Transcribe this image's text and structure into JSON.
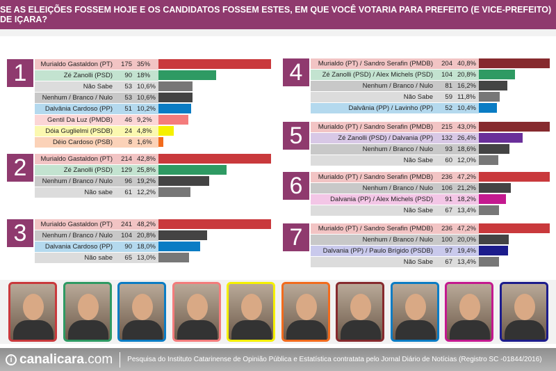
{
  "header": {
    "title": "SE AS ELEIÇÕES FOSSEM HOJE E OS CANDIDATOS FOSSEM ESTES, EM QUE VOCÊ VOTARIA PARA PREFEITO (E VICE-PREFEITO) DE IÇARA?"
  },
  "chart_data": [
    {
      "type": "bar",
      "title": "1",
      "rows": [
        {
          "label": "Murialdo Gastaldon (PT)",
          "count": "175",
          "pct": "35%",
          "value": 35,
          "bg": "#f2c4c4",
          "color": "#c9393c"
        },
        {
          "label": "Zé Zanolli (PSD)",
          "count": "90",
          "pct": "18%",
          "value": 18,
          "bg": "#c3e3d0",
          "color": "#2e9a63"
        },
        {
          "label": "Não Sabe",
          "count": "53",
          "pct": "10,6%",
          "value": 10.6,
          "bg": "#dcdcdc",
          "color": "#777777"
        },
        {
          "label": "Nenhum / Branco / Nulo",
          "count": "53",
          "pct": "10,6%",
          "value": 10.6,
          "bg": "#c8c8c8",
          "color": "#444444"
        },
        {
          "label": "Dalvânia Cardoso (PP)",
          "count": "51",
          "pct": "10,2%",
          "value": 10.2,
          "bg": "#b4d9ee",
          "color": "#0a7cc4"
        },
        {
          "label": "Gentil Da Luz (PMDB)",
          "count": "46",
          "pct": "9,2%",
          "value": 9.2,
          "bg": "#fbd6d6",
          "color": "#f47c7c"
        },
        {
          "label": "Dóia Guglielmi (PSDB)",
          "count": "24",
          "pct": "4,8%",
          "value": 4.8,
          "bg": "#fbf8b0",
          "color": "#f5f000"
        },
        {
          "label": "Déio Cardoso (PSB)",
          "count": "8",
          "pct": "1,6%",
          "value": 1.6,
          "bg": "#fbd2b8",
          "color": "#f26b1d"
        }
      ]
    },
    {
      "type": "bar",
      "title": "2",
      "rows": [
        {
          "label": "Murialdo Gastaldon (PT)",
          "count": "214",
          "pct": "42,8%",
          "value": 42.8,
          "bg": "#f2c4c4",
          "color": "#c9393c"
        },
        {
          "label": "Zé Zanolli (PSD)",
          "count": "129",
          "pct": "25,8%",
          "value": 25.8,
          "bg": "#c3e3d0",
          "color": "#2e9a63"
        },
        {
          "label": "Nenhum / Branco / Nulo",
          "count": "96",
          "pct": "19,2%",
          "value": 19.2,
          "bg": "#c8c8c8",
          "color": "#444444"
        },
        {
          "label": "Não sabe",
          "count": "61",
          "pct": "12,2%",
          "value": 12.2,
          "bg": "#dcdcdc",
          "color": "#777777"
        }
      ]
    },
    {
      "type": "bar",
      "title": "3",
      "rows": [
        {
          "label": "Murialdo Gastaldon (PT)",
          "count": "241",
          "pct": "48,2%",
          "value": 48.2,
          "bg": "#f2c4c4",
          "color": "#c9393c"
        },
        {
          "label": "Nenhum / Branco / Nulo",
          "count": "104",
          "pct": "20,8%",
          "value": 20.8,
          "bg": "#c8c8c8",
          "color": "#444444"
        },
        {
          "label": "Dalvania Cardoso (PP)",
          "count": "90",
          "pct": "18,0%",
          "value": 18.0,
          "bg": "#b4d9ee",
          "color": "#0a7cc4"
        },
        {
          "label": "Não sabe",
          "count": "65",
          "pct": "13,0%",
          "value": 13.0,
          "bg": "#dcdcdc",
          "color": "#777777"
        }
      ]
    },
    {
      "type": "bar",
      "title": "4",
      "rows": [
        {
          "label": "Murialdo (PT) / Sandro Serafin (PMDB)",
          "count": "204",
          "pct": "40,8%",
          "value": 40.8,
          "bg": "#f2c4c4",
          "color": "#862a2e"
        },
        {
          "label": "Zé Zanolli (PSD) / Alex Michels (PSD)",
          "count": "104",
          "pct": "20,8%",
          "value": 20.8,
          "bg": "#c3e3d0",
          "color": "#2e9a63"
        },
        {
          "label": "Nenhum / Branco / Nulo",
          "count": "81",
          "pct": "16,2%",
          "value": 16.2,
          "bg": "#c8c8c8",
          "color": "#444444"
        },
        {
          "label": "Não Sabe",
          "count": "59",
          "pct": "11,8%",
          "value": 11.8,
          "bg": "#dcdcdc",
          "color": "#777777"
        },
        {
          "label": "Dalvânia (PP) / Lavinho (PP)",
          "count": "52",
          "pct": "10,4%",
          "value": 10.4,
          "bg": "#b4d9ee",
          "color": "#0a7cc4"
        }
      ]
    },
    {
      "type": "bar",
      "title": "5",
      "rows": [
        {
          "label": "Murialdo (PT) / Sandro Serafin (PMDB)",
          "count": "215",
          "pct": "43,0%",
          "value": 43.0,
          "bg": "#f2c4c4",
          "color": "#862a2e"
        },
        {
          "label": "Zé Zanolli (PSD) / Dalvania (PP)",
          "count": "132",
          "pct": "26,4%",
          "value": 26.4,
          "bg": "#d8c8e6",
          "color": "#6a2f9a"
        },
        {
          "label": "Nenhum / Branco / Nulo",
          "count": "93",
          "pct": "18,6%",
          "value": 18.6,
          "bg": "#c8c8c8",
          "color": "#444444"
        },
        {
          "label": "Não Sabe",
          "count": "60",
          "pct": "12,0%",
          "value": 12.0,
          "bg": "#dcdcdc",
          "color": "#777777"
        }
      ]
    },
    {
      "type": "bar",
      "title": "6",
      "rows": [
        {
          "label": "Murialdo (PT) / Sandro Serafin (PMDB)",
          "count": "236",
          "pct": "47,2%",
          "value": 47.2,
          "bg": "#f2c4c4",
          "color": "#c9393c"
        },
        {
          "label": "Nenhum / Branco / Nulo",
          "count": "106",
          "pct": "21,2%",
          "value": 21.2,
          "bg": "#c8c8c8",
          "color": "#444444"
        },
        {
          "label": "Dalvania (PP) / Alex Michels (PSD)",
          "count": "91",
          "pct": "18,2%",
          "value": 18.2,
          "bg": "#f3c6e6",
          "color": "#c4198f"
        },
        {
          "label": "Não Sabe",
          "count": "67",
          "pct": "13,4%",
          "value": 13.4,
          "bg": "#dcdcdc",
          "color": "#777777"
        }
      ]
    },
    {
      "type": "bar",
      "title": "7",
      "rows": [
        {
          "label": "Murialdo (PT) / Sandro Serafin (PMDB)",
          "count": "236",
          "pct": "47,2%",
          "value": 47.2,
          "bg": "#f2c4c4",
          "color": "#c9393c"
        },
        {
          "label": "Nenhum / Branco / Nulo",
          "count": "100",
          "pct": "20,0%",
          "value": 20.0,
          "bg": "#c8c8c8",
          "color": "#444444"
        },
        {
          "label": "Dalvania (PP) / Paulo Brígido (PSDB)",
          "count": "97",
          "pct": "19,4%",
          "value": 19.4,
          "bg": "#c9c9ec",
          "color": "#1c1c8c"
        },
        {
          "label": "Não Sabe",
          "count": "67",
          "pct": "13,4%",
          "value": 13.4,
          "bg": "#dcdcdc",
          "color": "#777777"
        }
      ]
    }
  ],
  "photos": {
    "frame_colors": [
      "#c9393c",
      "#2e9a63",
      "#0a7cc4",
      "#f47c7c",
      "#f5f000",
      "#f26b1d",
      "#862a2e",
      "#0a7cc4",
      "#c4198f",
      "#1c1c8c"
    ]
  },
  "footer": {
    "logo_pre": "canal",
    "logo_bold": "icara",
    "logo_post": ".com",
    "credit": "Pesquisa do Instituto Catarinense de Opinião Pública e Estatística contratata pelo Jornal Diário de Notícias (Registro SC -01844/2016)"
  }
}
